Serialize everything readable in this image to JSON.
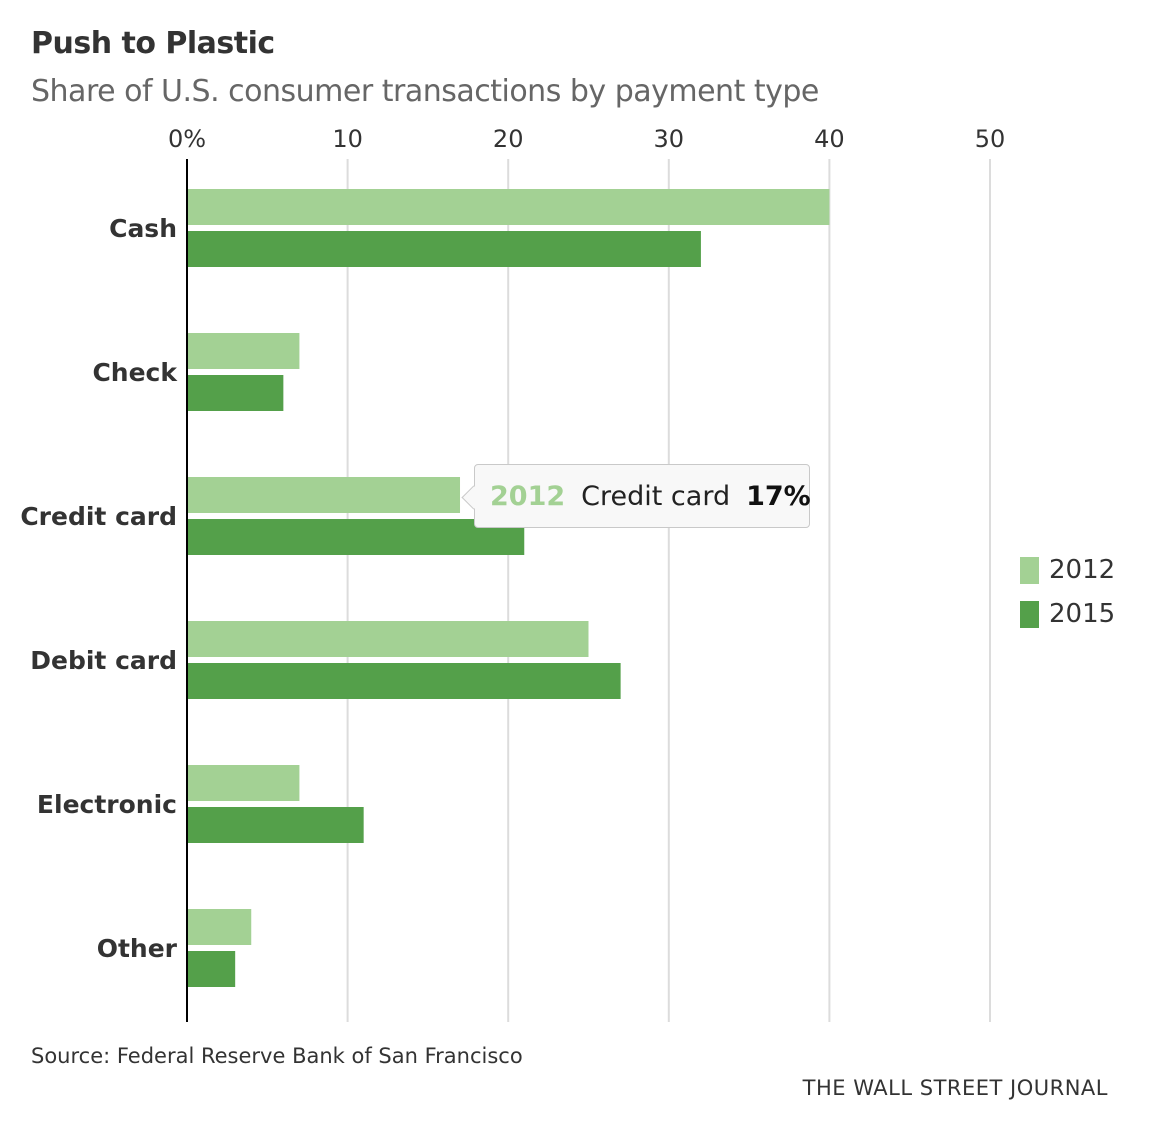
{
  "chart_data": {
    "type": "bar",
    "orientation": "horizontal",
    "title": "Push to Plastic",
    "subtitle": "Share of U.S. consumer transactions by payment type",
    "categories": [
      "Cash",
      "Check",
      "Credit card",
      "Debit card",
      "Electronic",
      "Other"
    ],
    "series": [
      {
        "name": "2012",
        "color": "#a3d194",
        "values": [
          40,
          7,
          17,
          25,
          7,
          4
        ]
      },
      {
        "name": "2015",
        "color": "#54a04a",
        "values": [
          32,
          6,
          21,
          27,
          11,
          3
        ]
      }
    ],
    "xlim": [
      0,
      50
    ],
    "xticks": [
      0,
      10,
      20,
      30,
      40,
      50
    ],
    "xtick_labels": [
      "0%",
      "10",
      "20",
      "30",
      "40",
      "50"
    ],
    "grid": true,
    "legend_position": "right",
    "tooltip": {
      "year": "2012",
      "category": "Credit card",
      "value": "17%"
    }
  },
  "source": "Source: Federal Reserve Bank of San Francisco",
  "brand": "THE WALL STREET JOURNAL"
}
